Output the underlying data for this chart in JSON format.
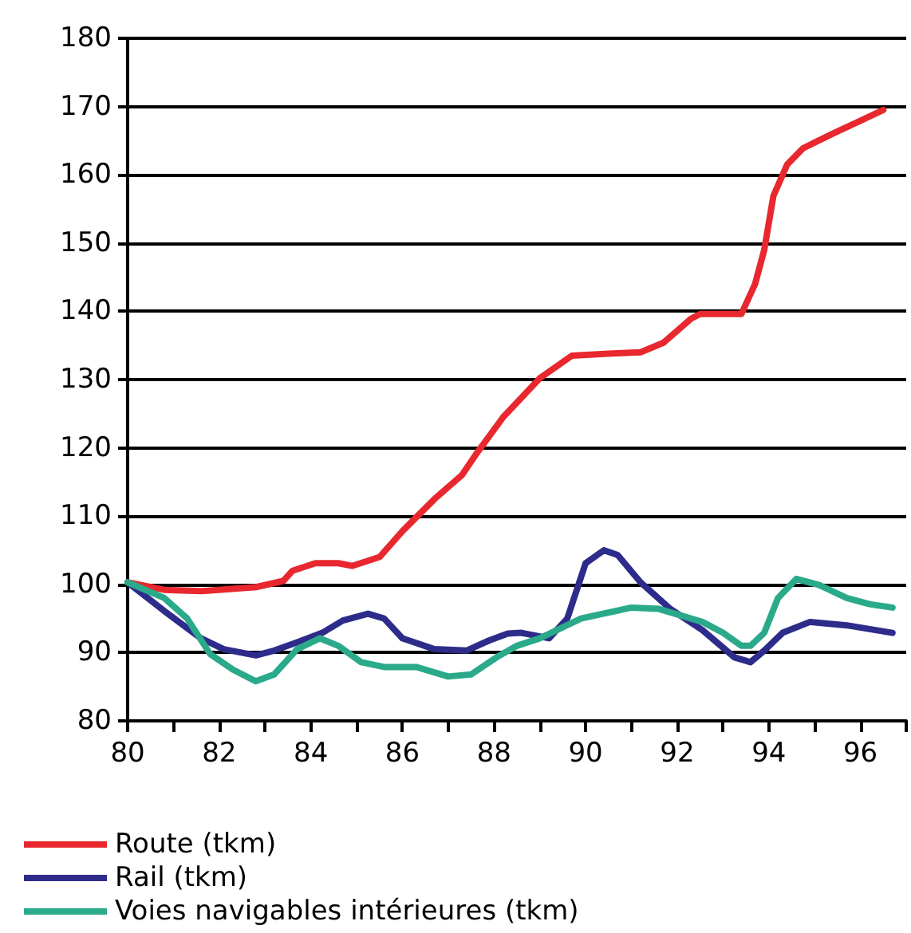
{
  "chart_data": {
    "type": "line",
    "xlim": [
      80,
      97
    ],
    "ylim": [
      80,
      180
    ],
    "xticks": [
      80,
      {
        "value": 81,
        "label": null
      },
      82,
      {
        "value": 83,
        "label": null
      },
      84,
      {
        "value": 85,
        "label": null
      },
      86,
      {
        "value": 87,
        "label": null
      },
      88,
      {
        "value": 89,
        "label": null
      },
      90,
      {
        "value": 91,
        "label": null
      },
      92,
      {
        "value": 93,
        "label": null
      },
      94,
      {
        "value": 95,
        "label": null
      },
      96,
      {
        "value": 97,
        "label": null
      }
    ],
    "yticks": [
      80,
      90,
      100,
      110,
      120,
      130,
      140,
      150,
      160,
      170,
      180
    ],
    "grid": "y",
    "legend": "bottom",
    "marker": "none",
    "line_style": "solid",
    "series": [
      {
        "name": "Route (tkm)",
        "color": "#e8282e",
        "x": [
          80,
          80.8,
          81.6,
          82.8,
          83.4,
          83.6,
          84.1,
          84.6,
          84.9,
          85.5,
          86,
          86.7,
          87.3,
          87.6,
          88.2,
          89,
          89.7,
          90.5,
          91.2,
          91.7,
          92.3,
          92.5,
          93.4,
          93.7,
          93.9,
          94.1,
          94.4,
          94.75,
          95.45,
          95.9,
          96.5
        ],
        "values": [
          100.3,
          99.2,
          99,
          99.6,
          100.5,
          102,
          103.1,
          103.1,
          102.7,
          104,
          107.8,
          112.5,
          116,
          119,
          124.5,
          130.2,
          133.5,
          133.8,
          134,
          135.4,
          138.9,
          139.6,
          139.6,
          144,
          149,
          156.9,
          161.5,
          163.9,
          166.2,
          167.6,
          169.5
        ]
      },
      {
        "name": "Rail (tkm)",
        "color": "#2e2c8a",
        "x": [
          80,
          80.8,
          81.6,
          82.1,
          82.8,
          83.2,
          83.7,
          84.25,
          84.7,
          85.25,
          85.6,
          86,
          86.7,
          87.4,
          87.9,
          88.3,
          88.6,
          89.2,
          89.6,
          90,
          90.4,
          90.7,
          91.2,
          91.85,
          92.55,
          93.25,
          93.6,
          93.9,
          94.3,
          94.9,
          95.7,
          96.7
        ],
        "values": [
          100.3,
          96.1,
          92.1,
          90.5,
          89.6,
          90.3,
          91.5,
          92.9,
          94.7,
          95.7,
          95,
          92.1,
          90.5,
          90.3,
          91.8,
          92.8,
          92.9,
          92.1,
          95,
          103.1,
          105,
          104.3,
          100.3,
          96.4,
          93.3,
          89.3,
          88.6,
          90.3,
          92.9,
          94.5,
          94,
          92.9
        ]
      },
      {
        "name": "Voies navigables intérieures (tkm)",
        "color": "#2aaa8a",
        "x": [
          80,
          80.8,
          81.3,
          81.8,
          82.3,
          82.8,
          83.2,
          83.7,
          84.2,
          84.6,
          85.1,
          85.6,
          86.3,
          87,
          87.5,
          88.1,
          88.5,
          89,
          89.9,
          91,
          91.6,
          92.55,
          93,
          93.4,
          93.6,
          93.9,
          94.2,
          94.6,
          95.1,
          95.7,
          96.2,
          96.7
        ],
        "values": [
          100.3,
          98,
          95,
          89.8,
          87.5,
          85.8,
          86.8,
          90.5,
          92.1,
          91,
          88.6,
          87.9,
          87.9,
          86.5,
          86.8,
          89.5,
          91,
          92.1,
          95,
          96.6,
          96.4,
          94.5,
          92.9,
          91,
          91,
          92.9,
          98,
          100.8,
          99.9,
          98,
          97.1,
          96.6
        ]
      }
    ]
  }
}
